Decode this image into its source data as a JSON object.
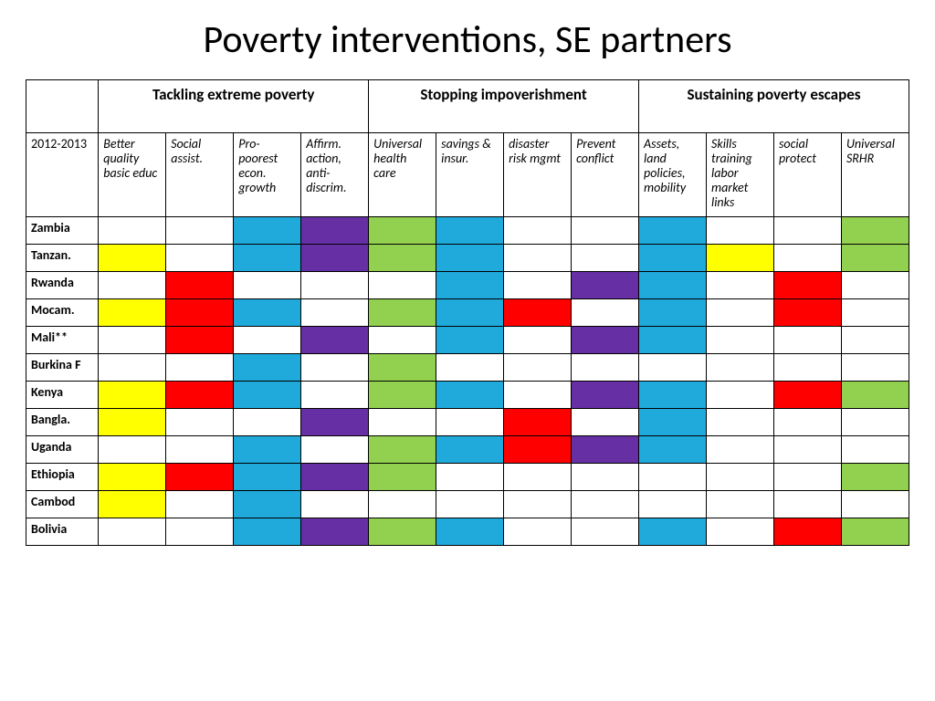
{
  "title": "Poverty interventions, SE partners",
  "title_fontsize": 42,
  "year_label": "2012-2013",
  "groups": [
    {
      "label": "Tackling extreme poverty",
      "span": 4
    },
    {
      "label": "Stopping impoverishment",
      "span": 4
    },
    {
      "label": "Sustaining poverty escapes",
      "span": 4
    }
  ],
  "subheads": [
    "Better quality basic educ",
    "Social assist.",
    "Pro-poorest econ. growth",
    "Affirm. action, anti-discrim.",
    "Universal health care",
    "savings & insur.",
    "disaster risk mgmt",
    "Prevent conflict",
    "Assets, land policies, mobility",
    "Skills training labor market links",
    "social protect",
    "Universal SRHR"
  ],
  "colors": {
    "blank": "#ffffff",
    "yellow": "#ffff00",
    "red": "#ff0000",
    "blue": "#1faadb",
    "purple": "#662fa3",
    "green": "#92d050"
  },
  "rows": [
    {
      "label": "Zambia",
      "cells": [
        "blank",
        "blank",
        "blue",
        "purple",
        "green",
        "blue",
        "blank",
        "blank",
        "blue",
        "blank",
        "blank",
        "green"
      ]
    },
    {
      "label": "Tanzan.",
      "cells": [
        "yellow",
        "blank",
        "blue",
        "purple",
        "green",
        "blue",
        "blank",
        "blank",
        "blue",
        "yellow",
        "blank",
        "green"
      ]
    },
    {
      "label": "Rwanda",
      "cells": [
        "blank",
        "red",
        "blank",
        "blank",
        "blank",
        "blue",
        "blank",
        "purple",
        "blue",
        "blank",
        "red",
        "blank"
      ]
    },
    {
      "label": "Mocam.",
      "cells": [
        "yellow",
        "red",
        "blue",
        "blank",
        "green",
        "blue",
        "red",
        "blank",
        "blue",
        "blank",
        "red",
        "blank"
      ]
    },
    {
      "label": "Mali**",
      "cells": [
        "blank",
        "red",
        "blank",
        "purple",
        "blank",
        "blue",
        "blank",
        "purple",
        "blue",
        "blank",
        "blank",
        "blank"
      ]
    },
    {
      "label": "Burkina F",
      "cells": [
        "blank",
        "blank",
        "blue",
        "blank",
        "green",
        "blank",
        "blank",
        "blank",
        "blank",
        "blank",
        "blank",
        "blank"
      ]
    },
    {
      "label": "Kenya",
      "cells": [
        "yellow",
        "red",
        "blue",
        "blank",
        "green",
        "blue",
        "blank",
        "purple",
        "blue",
        "blank",
        "red",
        "green"
      ]
    },
    {
      "label": "Bangla.",
      "cells": [
        "yellow",
        "blank",
        "blank",
        "purple",
        "blank",
        "blank",
        "red",
        "blank",
        "blue",
        "blank",
        "blank",
        "blank"
      ]
    },
    {
      "label": "Uganda",
      "cells": [
        "blank",
        "blank",
        "blue",
        "blank",
        "green",
        "blue",
        "red",
        "purple",
        "blue",
        "blank",
        "blank",
        "blank"
      ]
    },
    {
      "label": "Ethiopia",
      "cells": [
        "yellow",
        "red",
        "blue",
        "purple",
        "green",
        "blank",
        "blank",
        "blank",
        "blank",
        "blank",
        "blank",
        "green"
      ]
    },
    {
      "label": "Cambod",
      "cells": [
        "yellow",
        "blank",
        "blue",
        "blank",
        "blank",
        "blank",
        "blank",
        "blank",
        "blank",
        "blank",
        "blank",
        "blank"
      ]
    },
    {
      "label": "Bolivia",
      "cells": [
        "blank",
        "blank",
        "blue",
        "purple",
        "green",
        "blue",
        "blank",
        "blank",
        "blue",
        "blank",
        "red",
        "green"
      ]
    }
  ],
  "col_first_width_pct": 8.2,
  "group_header_fontsize": 17,
  "subhead_fontsize": 14,
  "row_label_fontsize": 14
}
